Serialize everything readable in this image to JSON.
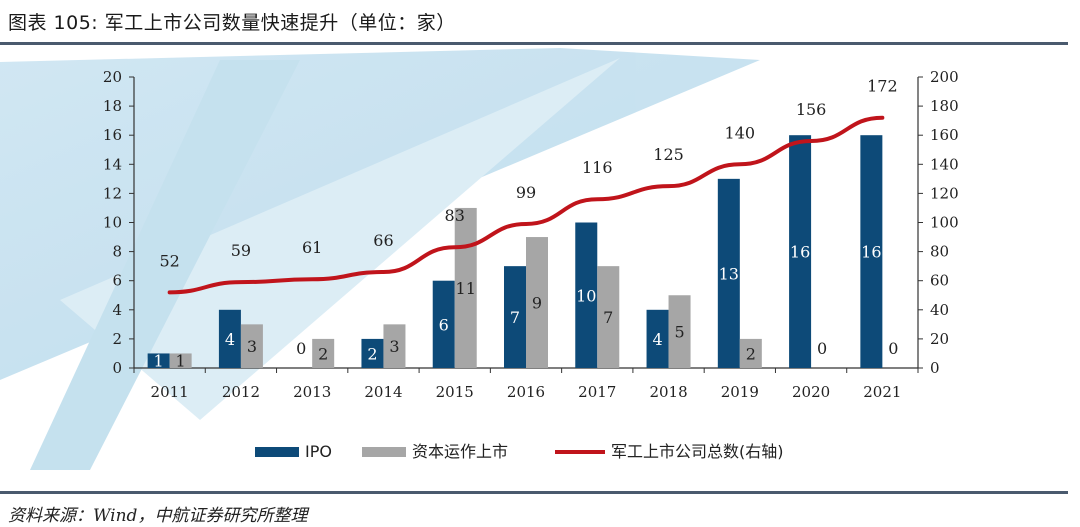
{
  "header": {
    "title": "图表 105: 军工上市公司数量快速提升（单位：家）"
  },
  "footer": {
    "source": "资料来源：Wind，中航证券研究所整理"
  },
  "chart_data": {
    "type": "bar",
    "categories": [
      "2011",
      "2012",
      "2013",
      "2014",
      "2015",
      "2016",
      "2017",
      "2018",
      "2019",
      "2020",
      "2021"
    ],
    "series": [
      {
        "name": "IPO",
        "type": "bar",
        "axis": "left",
        "color": "#0d4a78",
        "values": [
          1,
          4,
          0,
          2,
          6,
          7,
          10,
          4,
          13,
          16,
          16
        ]
      },
      {
        "name": "资本运作上市",
        "type": "bar",
        "axis": "left",
        "color": "#a6a6a6",
        "values": [
          1,
          3,
          2,
          3,
          11,
          9,
          7,
          5,
          2,
          0,
          0
        ]
      },
      {
        "name": "军工上市公司总数(右轴)",
        "type": "line",
        "axis": "right",
        "color": "#c0141b",
        "values": [
          52,
          59,
          61,
          66,
          83,
          99,
          116,
          125,
          140,
          156,
          172
        ]
      }
    ],
    "y_left": {
      "min": 0,
      "max": 20,
      "step": 2,
      "ticks": [
        "0",
        "2",
        "4",
        "6",
        "8",
        "10",
        "12",
        "14",
        "16",
        "18",
        "20"
      ]
    },
    "y_right": {
      "min": 0,
      "max": 200,
      "step": 20,
      "ticks": [
        "0",
        "20",
        "40",
        "60",
        "80",
        "100",
        "120",
        "140",
        "160",
        "180",
        "200"
      ]
    },
    "legend_position": "bottom",
    "grid": false
  }
}
